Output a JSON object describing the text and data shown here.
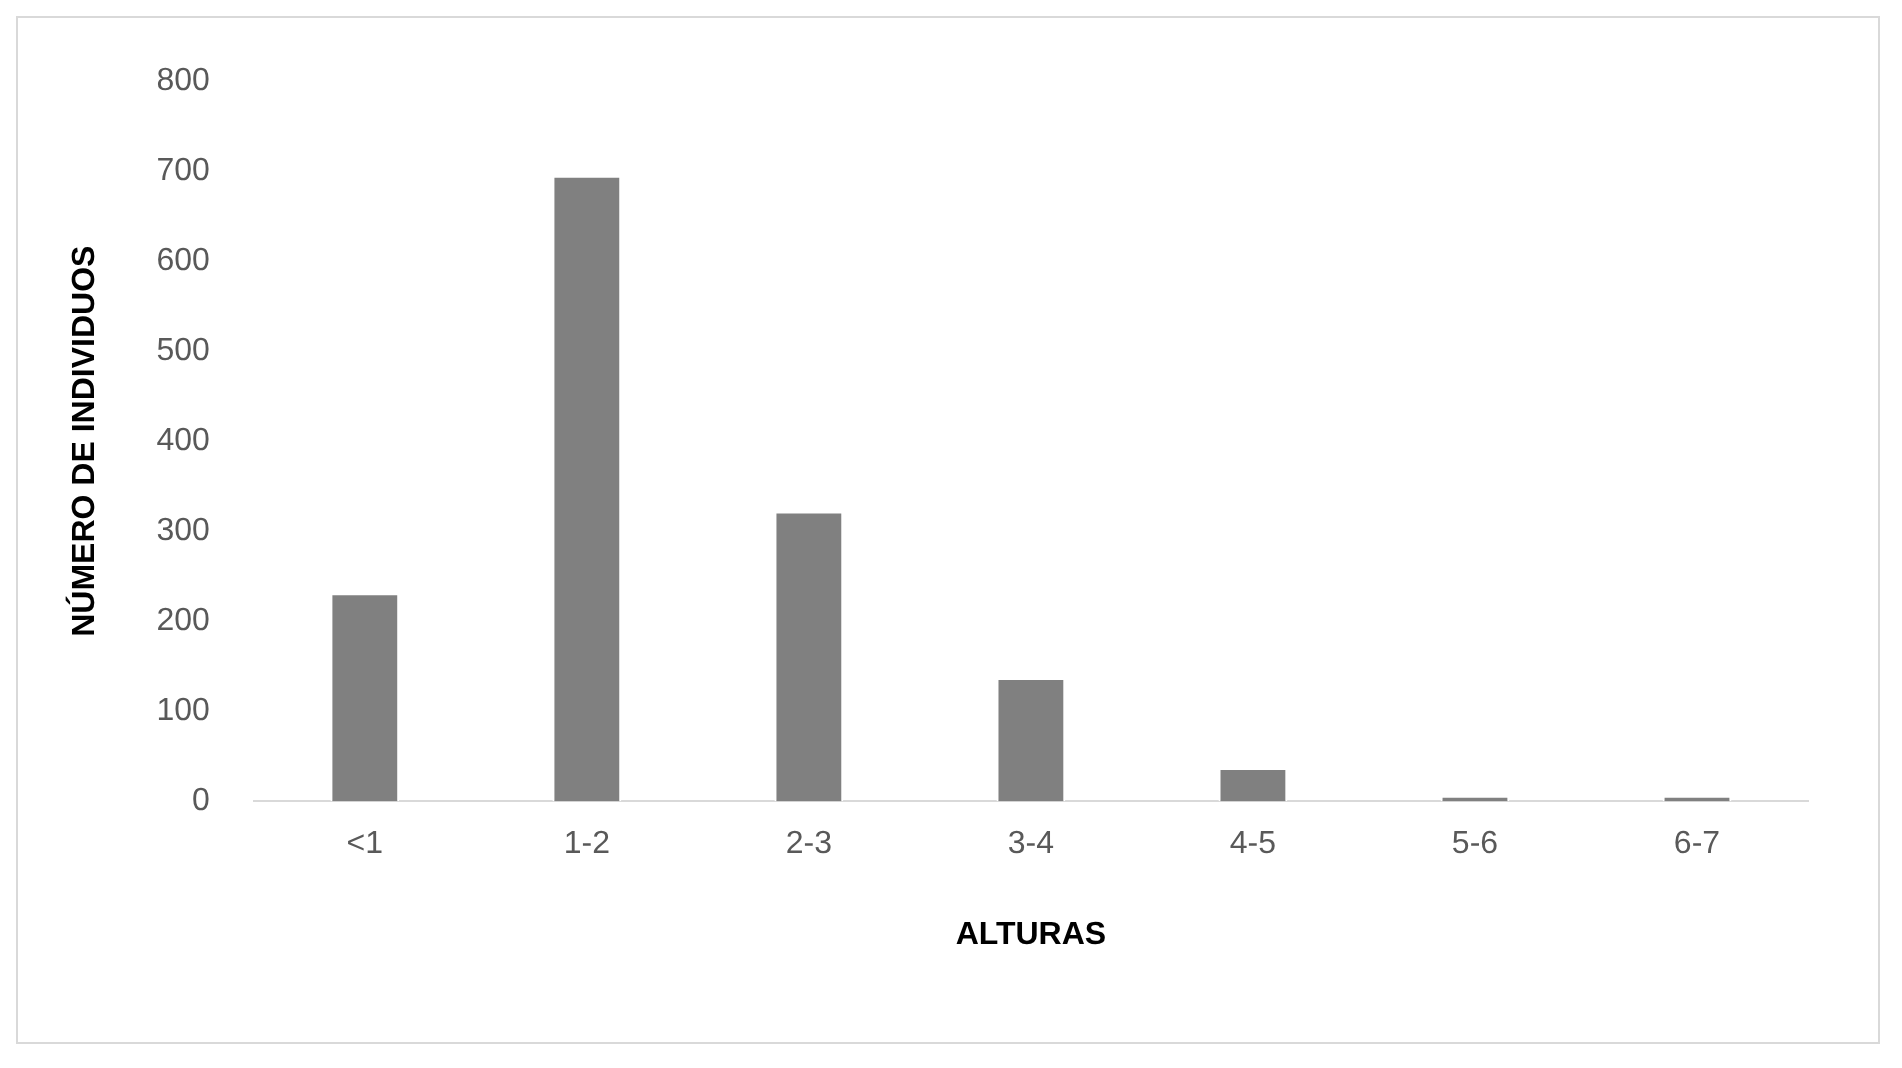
{
  "chart_data": {
    "type": "bar",
    "xlabel": "ALTURAS",
    "ylabel": "NÚMERO DE INDIVIDUOS",
    "categories": [
      "<1",
      "1-2",
      "2-3",
      "3-4",
      "4-5",
      "5-6",
      "6-7"
    ],
    "values": [
      231,
      695,
      322,
      137,
      37,
      6,
      6
    ],
    "color": "#808080",
    "ylim": [
      0,
      800
    ],
    "yticks": [
      0,
      100,
      200,
      300,
      400,
      500,
      600,
      700,
      800
    ],
    "grid": false,
    "legend": false
  }
}
